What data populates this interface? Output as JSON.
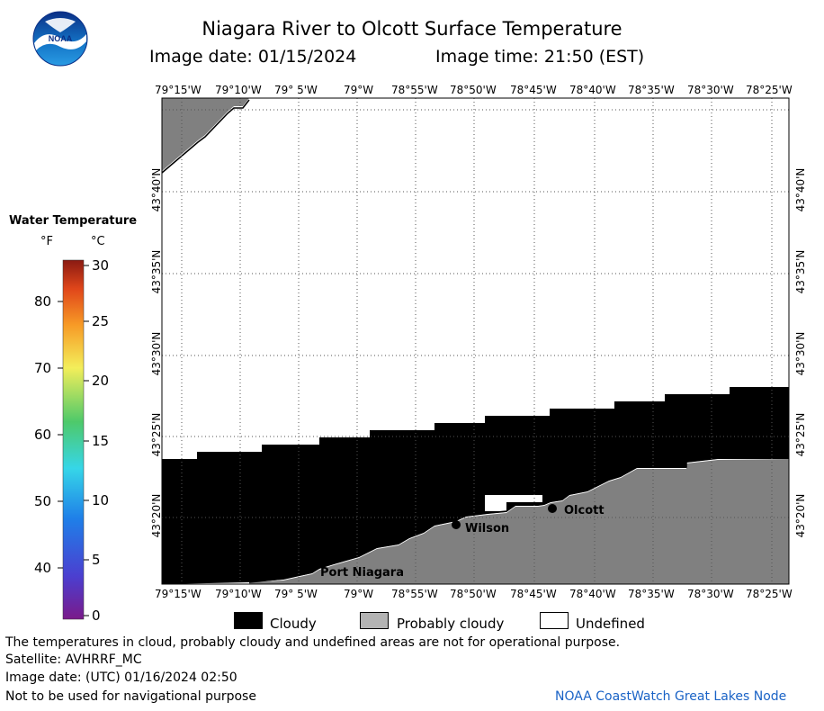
{
  "title": "Niagara River to Olcott Surface Temperature",
  "image_date_label": "Image date: 01/15/2024",
  "image_time_label": "Image time: 21:50 (EST)",
  "logo_text": "NOAA",
  "lon_ticks": [
    "79°15'W",
    "79°10'W",
    "79° 5'W",
    "79°W",
    "78°55'W",
    "78°50'W",
    "78°45'W",
    "78°40'W",
    "78°35'W",
    "78°30'W",
    "78°25'W"
  ],
  "lat_ticks": [
    "43°40'N",
    "43°35'N",
    "43°30'N",
    "43°25'N",
    "43°20'N"
  ],
  "places": [
    {
      "name": "Wilson"
    },
    {
      "name": "Olcott"
    },
    {
      "name": "Port Niagara"
    }
  ],
  "legend": {
    "title": "Water Temperature",
    "unit_f": "°F",
    "unit_c": "°C",
    "f_labels": [
      "80",
      "70",
      "60",
      "50",
      "40"
    ],
    "c_labels": [
      "30",
      "25",
      "20",
      "15",
      "10",
      "5",
      "0"
    ]
  },
  "key": {
    "cloudy": "Cloudy",
    "probably_cloudy": "Probably cloudy",
    "undefined": "Undefined"
  },
  "colors": {
    "cloudy": "#000000",
    "probably_cloudy": "#808080",
    "undefined": "#ffffff"
  },
  "footer": {
    "disclaimer": "The temperatures in cloud, probably cloudy and undefined areas are not for operational purpose.",
    "satellite": "Satellite: AVHRRF_MC",
    "utc_date": "Image date: (UTC) 01/16/2024  02:50",
    "nav": "Not to be used for navigational purpose",
    "credit": "NOAA CoastWatch Great Lakes Node"
  }
}
